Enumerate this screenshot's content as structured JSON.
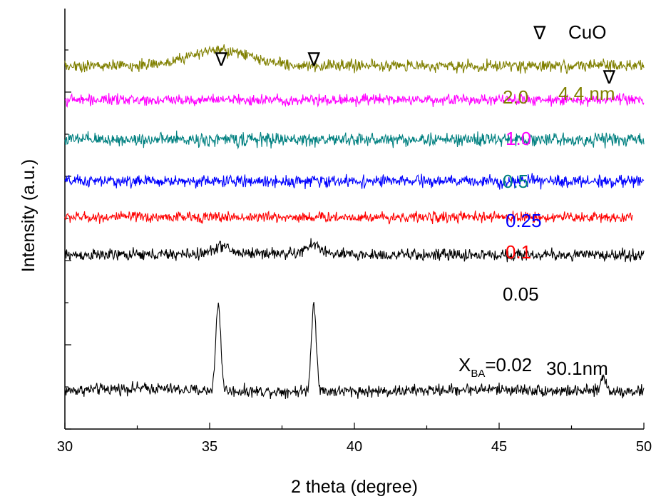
{
  "chart_data": {
    "type": "line",
    "xlabel": "2 theta (degree)",
    "ylabel": "Intensity (a.u.)",
    "xlim": [
      30,
      50
    ],
    "x_ticks": [
      30,
      35,
      40,
      45,
      50
    ],
    "y_ticks_labeled": false,
    "grid": false,
    "series": [
      {
        "name": "X_BA=0.02",
        "label_main": "X",
        "label_sub": "BA",
        "label_tail": "=0.02",
        "color": "#000000",
        "baseline": 0.0,
        "noise": 0.022,
        "x_end": 50,
        "peaks": [
          [
            35.3,
            0.46,
            0.12
          ],
          [
            38.6,
            0.46,
            0.12
          ],
          [
            48.6,
            0.08,
            0.12
          ]
        ],
        "humps": [
          [
            32.5,
            0.015,
            2.0
          ],
          [
            44.5,
            0.01,
            2.0
          ]
        ]
      },
      {
        "name": "0.05",
        "color": "#000000",
        "baseline": 0.72,
        "noise": 0.022,
        "x_end": 50,
        "peaks": [
          [
            35.4,
            0.04,
            0.35
          ],
          [
            38.6,
            0.05,
            0.35
          ]
        ],
        "humps": [
          [
            36.5,
            0.01,
            2.5
          ]
        ]
      },
      {
        "name": "0.1",
        "color": "#ff0000",
        "baseline": 0.92,
        "noise": 0.02,
        "x_end": 49.6,
        "peaks": [],
        "humps": []
      },
      {
        "name": "0.25",
        "color": "#0000ff",
        "baseline": 1.11,
        "noise": 0.022,
        "x_end": 50,
        "peaks": [],
        "humps": []
      },
      {
        "name": "0.5",
        "color": "#008080",
        "baseline": 1.33,
        "noise": 0.025,
        "x_end": 50,
        "peaks": [],
        "humps": []
      },
      {
        "name": "1.0",
        "color": "#ff00ff",
        "baseline": 1.54,
        "noise": 0.02,
        "x_end": 50,
        "peaks": [],
        "humps": []
      },
      {
        "name": "2.0",
        "color": "#808000",
        "baseline": 1.72,
        "noise": 0.022,
        "x_end": 50,
        "peaks": [],
        "humps": [
          [
            35.3,
            0.08,
            1.5
          ]
        ]
      }
    ],
    "annotations": {
      "marker_symbol": "∇",
      "marker_label": "CuO",
      "marker_positions": [
        35.4,
        38.6,
        48.8
      ],
      "legend_marker_x": 46.4,
      "crystallite_size_top": "4.4 nm",
      "crystallite_size_top_color": "#808000",
      "crystallite_size_bottom": "30.1nm",
      "crystallite_size_bottom_color": "#000000"
    }
  }
}
